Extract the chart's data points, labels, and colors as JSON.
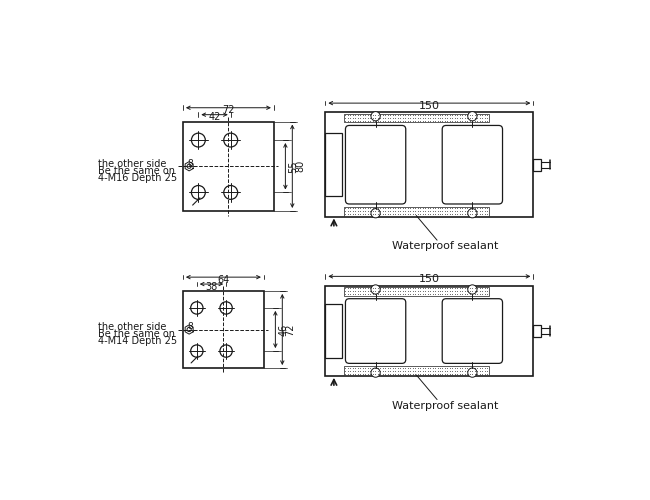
{
  "bg_color": "#ffffff",
  "line_color": "#1a1a1a",
  "text_color": "#1a1a1a",
  "diag1": {
    "bolt_line1": "4-M14 Depth 25",
    "bolt_line2": "Be the same on",
    "bolt_line3": "the other side",
    "d38": "38",
    "d64": "64",
    "d46": "46",
    "d72": "72",
    "d8": "8"
  },
  "diag2": {
    "bolt_line1": "4-M16 Depth 25",
    "bolt_line2": "Be the same on",
    "bolt_line3": "the other side",
    "d42": "42",
    "d72": "72",
    "d55": "55",
    "d80": "80",
    "d8": "8"
  },
  "waterproof": "Waterproof sealant",
  "d150": "150"
}
